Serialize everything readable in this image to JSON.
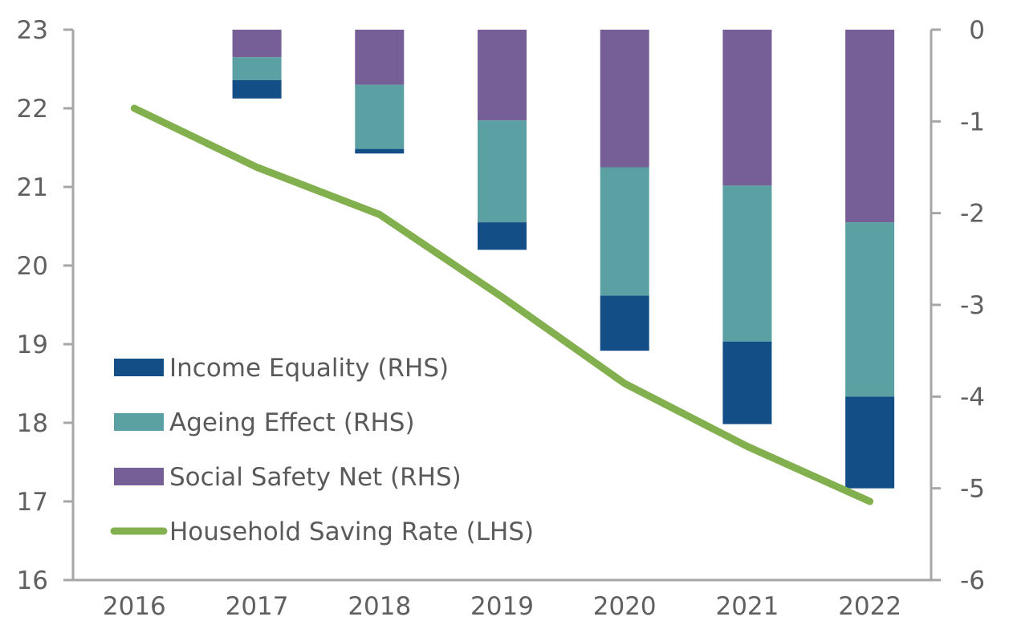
{
  "chart_data": {
    "type": "bar",
    "categories": [
      "2016",
      "2017",
      "2018",
      "2019",
      "2020",
      "2021",
      "2022"
    ],
    "left_axis": {
      "ylim": [
        16,
        23
      ],
      "ticks": [
        "16",
        "17",
        "18",
        "19",
        "20",
        "21",
        "22",
        "23"
      ]
    },
    "right_axis": {
      "ylim": [
        -6,
        0
      ],
      "ticks": [
        "-6",
        "-5",
        "-4",
        "-3",
        "-2",
        "-1",
        "0"
      ]
    },
    "series": [
      {
        "name": "Social Safety Net (RHS)",
        "axis": "right",
        "color": "#765e96",
        "values": [
          0,
          -0.3,
          -0.6,
          -0.99,
          -1.5,
          -1.7,
          -2.1
        ]
      },
      {
        "name": "Ageing Effect (RHS)",
        "axis": "right",
        "color": "#5ba1a4",
        "values": [
          0,
          -0.25,
          -0.7,
          -1.11,
          -1.4,
          -1.7,
          -1.9
        ]
      },
      {
        "name": "Income Equality (RHS)",
        "axis": "right",
        "color": "#134e86",
        "values": [
          0,
          -0.2,
          -0.05,
          -0.3,
          -0.6,
          -0.9,
          -1.0
        ]
      },
      {
        "name": "Household Saving Rate (LHS)",
        "axis": "left",
        "type": "line",
        "color": "#82b04e",
        "values": [
          22.0,
          21.25,
          20.65,
          19.6,
          18.5,
          17.7,
          17.0
        ]
      }
    ],
    "legend_position": "bottom-left",
    "grid": false
  }
}
